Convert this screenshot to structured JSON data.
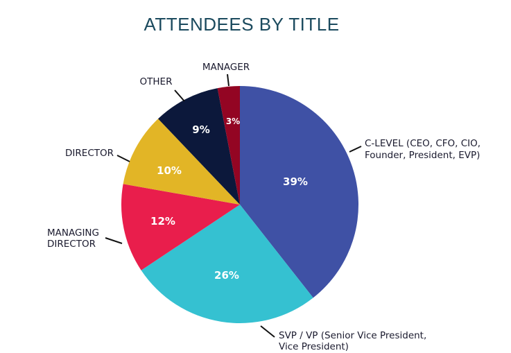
{
  "chart_data": {
    "type": "pie",
    "title": "ATTENDEES BY TITLE",
    "start_angle": "12 o'clock, clockwise",
    "slices": [
      {
        "label": [
          "C-LEVEL (CEO, CFO, CIO,",
          "Founder, President, EVP)"
        ],
        "value": 39,
        "value_label": "39%",
        "color": "#3F51A5"
      },
      {
        "label": [
          "SVP / VP (Senior Vice President,",
          "Vice President)"
        ],
        "value": 26,
        "value_label": "26%",
        "color": "#35C1D1"
      },
      {
        "label": [
          "MANAGING",
          "DIRECTOR"
        ],
        "value": 12,
        "value_label": "12%",
        "color": "#E91E4C"
      },
      {
        "label": [
          "DIRECTOR"
        ],
        "value": 10,
        "value_label": "10%",
        "color": "#E2B526"
      },
      {
        "label": [
          "OTHER"
        ],
        "value": 9,
        "value_label": "9%",
        "color": "#0C183B"
      },
      {
        "label": [
          "MANAGER"
        ],
        "value": 3,
        "value_label": "3%",
        "color": "#930523"
      }
    ]
  }
}
